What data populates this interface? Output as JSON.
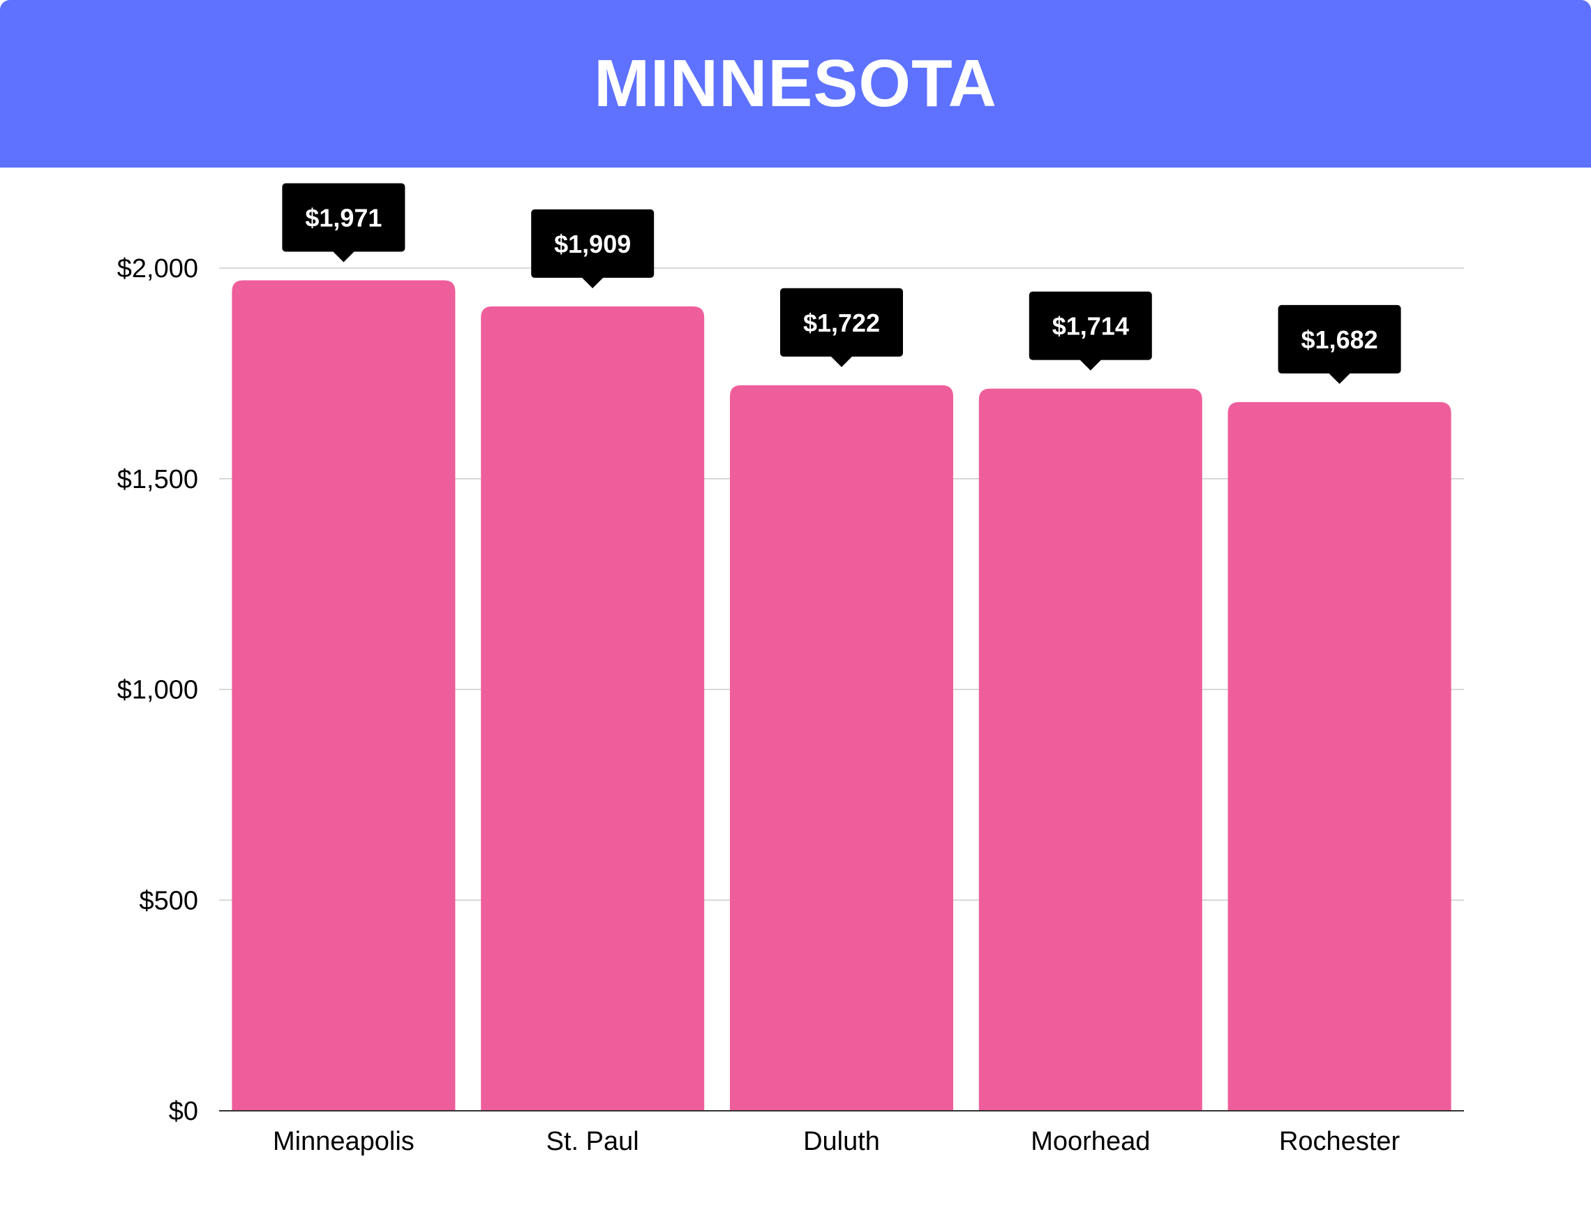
{
  "header": {
    "title": "MINNESOTA"
  },
  "colors": {
    "header_bg": "#5E72FF",
    "bar": "#EE5E9A",
    "label_bg": "#000000",
    "label_text": "#FFFFFF",
    "grid": "#CCCCCC",
    "axis_text": "#000000"
  },
  "chart_data": {
    "type": "bar",
    "title": "MINNESOTA",
    "categories": [
      "Minneapolis",
      "St. Paul",
      "Duluth",
      "Moorhead",
      "Rochester"
    ],
    "values": [
      1971,
      1909,
      1722,
      1714,
      1682
    ],
    "value_labels": [
      "$1,971",
      "$1,909",
      "$1,722",
      "$1,714",
      "$1,682"
    ],
    "xlabel": "",
    "ylabel": "",
    "ylim": [
      0,
      2000
    ],
    "yticks": [
      0,
      500,
      1000,
      1500,
      2000
    ],
    "ytick_labels": [
      "$0",
      "$500",
      "$1,000",
      "$1,500",
      "$2,000"
    ],
    "grid": true,
    "legend": "none"
  }
}
